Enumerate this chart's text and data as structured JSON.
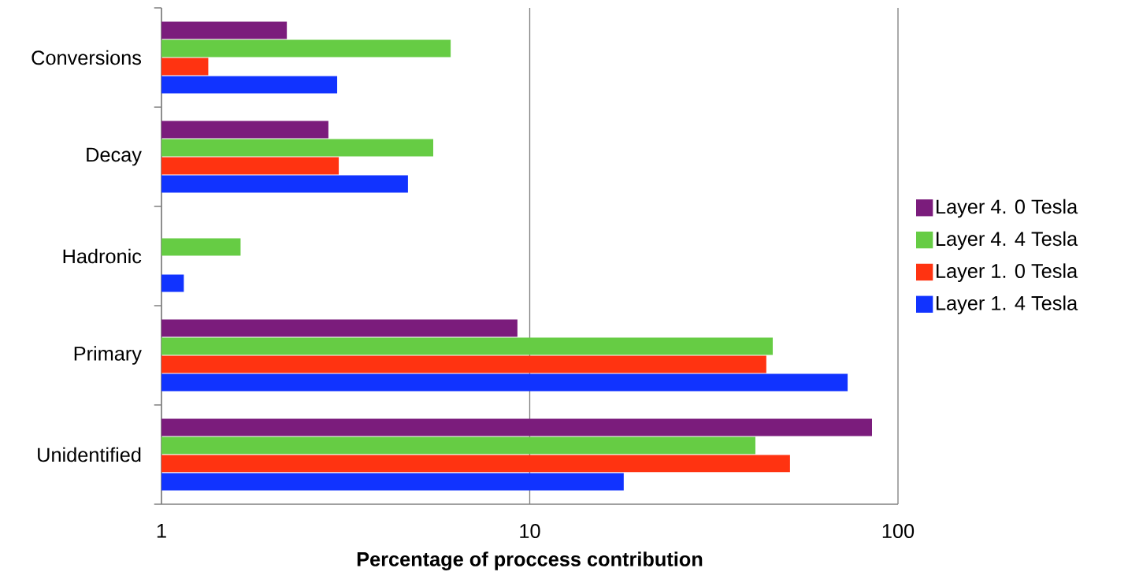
{
  "chart_data": {
    "type": "bar",
    "orientation": "horizontal",
    "xlabel": "Percentage of proccess contribution",
    "log": "x",
    "xlim": [
      1,
      100
    ],
    "xticks": [
      1,
      10,
      100
    ],
    "grid": "x",
    "legend": "right",
    "categories": [
      "Conversions",
      "Decay",
      "Hadronic",
      "Primary",
      "Unidentified"
    ],
    "series": [
      {
        "name": "Layer 4. 0 Tesla",
        "color": "#7b1c7c",
        "values": [
          2.19,
          2.84,
          null,
          9.26,
          85
        ]
      },
      {
        "name": "Layer 4. 4 Tesla",
        "color": "#66cc44",
        "values": [
          6.1,
          5.47,
          1.64,
          45.7,
          41
        ]
      },
      {
        "name": "Layer 1. 0 Tesla",
        "color": "#ff3311",
        "values": [
          1.34,
          3.03,
          null,
          43.9,
          50.9
        ]
      },
      {
        "name": "Layer 1. 4 Tesla",
        "color": "#1133ff",
        "values": [
          3.0,
          4.67,
          1.15,
          73.0,
          18.0
        ]
      }
    ]
  }
}
